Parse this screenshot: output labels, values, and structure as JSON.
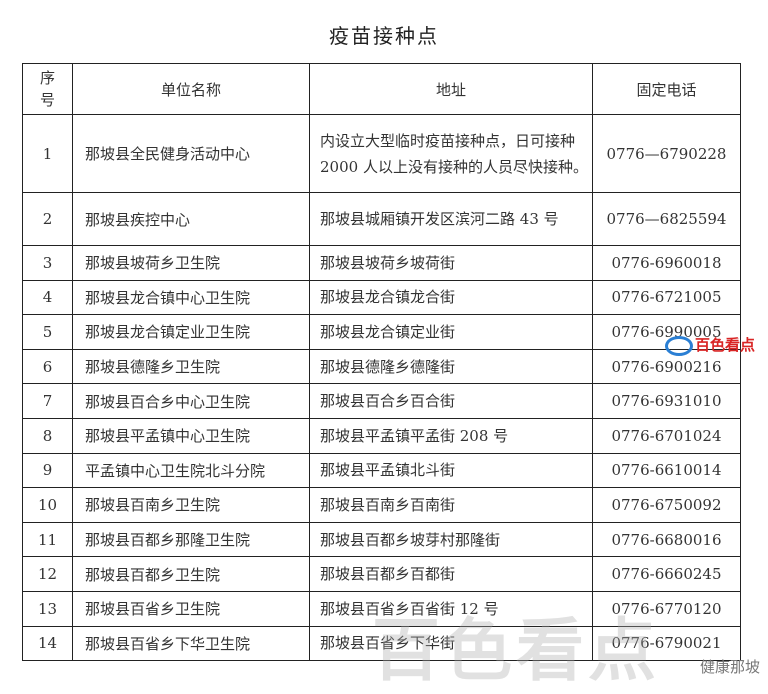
{
  "title": "疫苗接种点",
  "headers": {
    "seq_line1": "序",
    "seq_line2": "号",
    "name": "单位名称",
    "address": "地址",
    "phone": "固定电话"
  },
  "rows": [
    {
      "no": "1",
      "name": "那坡县全民健身活动中心",
      "address": "内设立大型临时疫苗接种点，日可接种 2000 人以上没有接种的人员尽快接种。",
      "phone": "0776—6790228"
    },
    {
      "no": "2",
      "name": "那坡县疾控中心",
      "address": "那坡县城厢镇开发区滨河二路 43 号",
      "phone": "0776—6825594"
    },
    {
      "no": "3",
      "name": "那坡县坡荷乡卫生院",
      "address": "那坡县坡荷乡坡荷街",
      "phone": "0776-6960018"
    },
    {
      "no": "4",
      "name": "那坡县龙合镇中心卫生院",
      "address": "那坡县龙合镇龙合街",
      "phone": "0776-6721005"
    },
    {
      "no": "5",
      "name": "那坡县龙合镇定业卫生院",
      "address": "那坡县龙合镇定业街",
      "phone": "0776-6990005"
    },
    {
      "no": "6",
      "name": "那坡县德隆乡卫生院",
      "address": "那坡县德隆乡德隆街",
      "phone": "0776-6900216"
    },
    {
      "no": "7",
      "name": "那坡县百合乡中心卫生院",
      "address": "那坡县百合乡百合街",
      "phone": "0776-6931010"
    },
    {
      "no": "8",
      "name": "那坡县平孟镇中心卫生院",
      "address": "那坡县平孟镇平孟街 208 号",
      "phone": "0776-6701024"
    },
    {
      "no": "9",
      "name": "平孟镇中心卫生院北斗分院",
      "address": "那坡县平孟镇北斗街",
      "phone": "0776-6610014"
    },
    {
      "no": "10",
      "name": "那坡县百南乡卫生院",
      "address": "那坡县百南乡百南街",
      "phone": "0776-6750092"
    },
    {
      "no": "11",
      "name": "那坡县百都乡那隆卫生院",
      "address": "那坡县百都乡坡芽村那隆街",
      "phone": "0776-6680016"
    },
    {
      "no": "12",
      "name": "那坡县百都乡卫生院",
      "address": "那坡县百都乡百都街",
      "phone": "0776-6660245"
    },
    {
      "no": "13",
      "name": "那坡县百省乡卫生院",
      "address": "那坡县百省乡百省街 12 号",
      "phone": "0776-6770120"
    },
    {
      "no": "14",
      "name": "那坡县百省乡下华卫生院",
      "address": "那坡县百省乡下华街",
      "phone": "0776-6790021"
    }
  ],
  "watermarks": {
    "logo_red": "百色看点",
    "logo_big": "百色看点",
    "account": "健康那坡"
  }
}
